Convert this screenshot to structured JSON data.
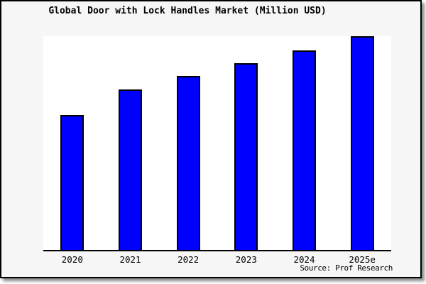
{
  "title": "Global Door with Lock Handles Market (Million USD)",
  "source": "Source: Prof Research",
  "colors": {
    "bar_fill": "#0000FF",
    "bar_border": "#000000",
    "plot_background": "#FFFFFF",
    "canvas_background": "#F6F6F6",
    "frame_border": "#000000"
  },
  "chart_data": {
    "type": "bar",
    "title": "Global Door with Lock Handles Market (Million USD)",
    "categories": [
      "2020",
      "2021",
      "2022",
      "2023",
      "2024",
      "2025e"
    ],
    "values": [
      63,
      75,
      81.5,
      87.5,
      93.5,
      100
    ],
    "values_note": "No y-axis or data labels are shown in the chart; values are estimated relative bar heights as a percentage of the tallest bar (2025e = 100).",
    "xlabel": "",
    "ylabel": "",
    "ylim": [
      0,
      100
    ],
    "grid": false,
    "legend": false,
    "annotations": [
      "Source: Prof Research"
    ]
  }
}
